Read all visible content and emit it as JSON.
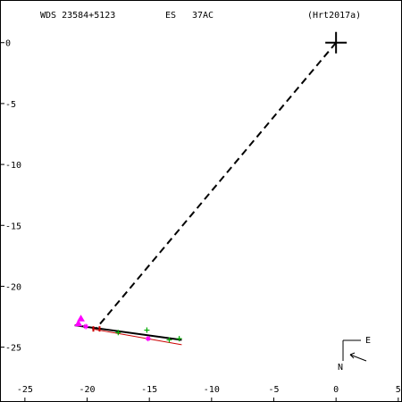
{
  "header": {
    "system": "WDS 23584+5123",
    "discoverer": "ES",
    "components": "37AC",
    "reference": "(Hrt2017a)"
  },
  "compass": {
    "east_label": "E",
    "north_label": "N"
  },
  "chart_data": {
    "type": "scatter",
    "title": "WDS 23584+5123 ES 37AC (Hrt2017a)",
    "xlabel": "",
    "ylabel": "",
    "xlim": [
      -27,
      5.3
    ],
    "ylim": [
      -29.5,
      3.5
    ],
    "x_ticks": [
      -25,
      -20,
      -15,
      -10,
      -5,
      0,
      5
    ],
    "y_ticks": [
      0,
      -5,
      -10,
      -15,
      -20,
      -25
    ],
    "grid": false,
    "primary": {
      "x": 0,
      "y": 0,
      "marker": "large-cross"
    },
    "orbit_line": {
      "color": "#000000",
      "points": [
        [
          -21.0,
          -23.2
        ],
        [
          -12.4,
          -24.4
        ]
      ]
    },
    "fit_line": {
      "color": "#cc0000",
      "points": [
        [
          -19.6,
          -23.5
        ],
        [
          -12.4,
          -24.8
        ]
      ]
    },
    "projection_line": {
      "style": "dashed",
      "color": "#000000",
      "points": [
        [
          0,
          0
        ],
        [
          -19.3,
          -23.5
        ]
      ]
    },
    "series": [
      {
        "marker": "plus",
        "color": "#00aa00",
        "points": [
          [
            -15.2,
            -23.6
          ],
          [
            -13.4,
            -24.4
          ],
          [
            -12.6,
            -24.3
          ],
          [
            -17.5,
            -23.8
          ]
        ]
      },
      {
        "marker": "triangle",
        "color": "#ff00ff",
        "points": [
          [
            -20.5,
            -22.7
          ],
          [
            -20.7,
            -23.1
          ]
        ]
      },
      {
        "marker": "star",
        "color": "#ff00ff",
        "points": [
          [
            -15.1,
            -24.3
          ],
          [
            -20.1,
            -23.3
          ]
        ]
      },
      {
        "marker": "bar",
        "color": "#cc0000",
        "points": [
          [
            -19.5,
            -23.5
          ],
          [
            -19.0,
            -23.5
          ]
        ]
      }
    ]
  }
}
